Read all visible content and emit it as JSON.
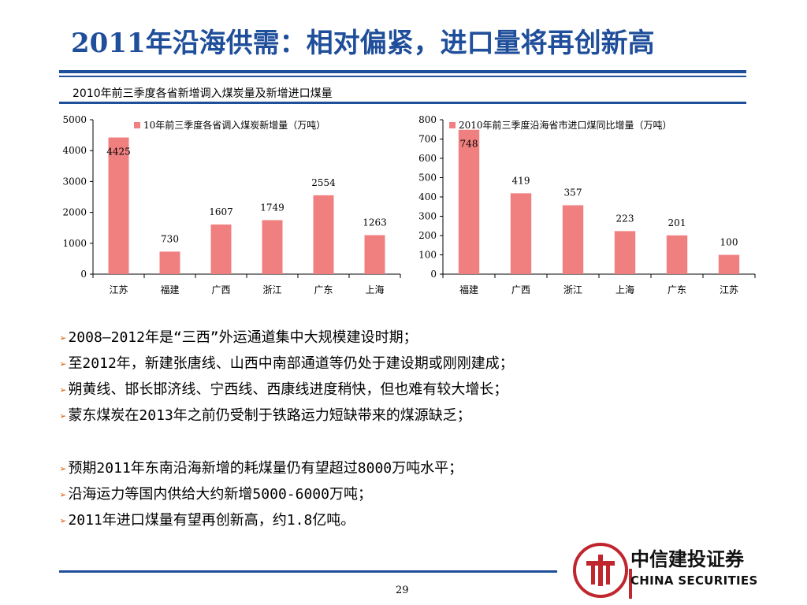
{
  "title": "2011年沿海供需：相对偏紧，进口量将再创新高",
  "subtitle": "2010年前三季度各省新增调入煤炭量及新增进口煤量",
  "colors": {
    "accent": "#1f4e9a",
    "bar": "#f08080",
    "bullet_arrow": "#d35400",
    "logo_red": "#c0262d"
  },
  "chart_data": [
    {
      "type": "bar",
      "title": "",
      "legend": "10年前三季度各省调入煤炭新增量（万吨）",
      "legend_position": "top-right",
      "categories": [
        "江苏",
        "福建",
        "广西",
        "浙江",
        "广东",
        "上海"
      ],
      "values": [
        4425,
        730,
        1607,
        1749,
        2554,
        1263
      ],
      "ylim": [
        0,
        5000
      ],
      "yticks": [
        0,
        1000,
        2000,
        3000,
        4000,
        5000
      ],
      "xlabel": "",
      "ylabel": "",
      "grid": false
    },
    {
      "type": "bar",
      "title": "",
      "legend": "2010年前三季度沿海省市进口煤同比增量（万吨）",
      "legend_position": "top-right",
      "categories": [
        "福建",
        "广西",
        "浙江",
        "上海",
        "广东",
        "江苏"
      ],
      "values": [
        748,
        419,
        357,
        223,
        201,
        100
      ],
      "ylim": [
        0,
        800
      ],
      "yticks": [
        0,
        100,
        200,
        300,
        400,
        500,
        600,
        700,
        800
      ],
      "xlabel": "",
      "ylabel": "",
      "grid": false
    }
  ],
  "bullets": [
    "2008—2012年是“三西”外运通道集中大规模建设时期；",
    "至2012年，新建张唐线、山西中南部通道等仍处于建设期或刚刚建成；",
    "朔黄线、邯长邯济线、宁西线、西康线进度稍快，但也难有较大增长；",
    "蒙东煤炭在2013年之前仍受制于铁路运力短缺带来的煤源缺乏；",
    "预期2011年东南沿海新增的耗煤量仍有望超过8000万吨水平；",
    "沿海运力等国内供给大约新增5000-6000万吨；",
    "2011年进口煤量有望再创新高，约1.8亿吨。"
  ],
  "bullet_marker": "➢",
  "page_number": "29",
  "logo": {
    "name_cn": "中信建投证券",
    "name_en": "CHINA SECURITIES",
    "icon": "china-securities-logo-icon"
  }
}
